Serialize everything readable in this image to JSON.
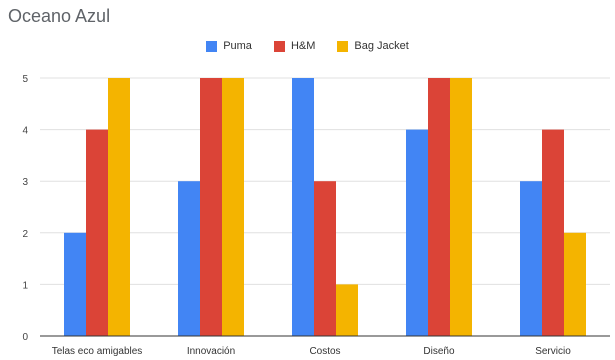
{
  "chart_data": {
    "type": "bar",
    "title": "Oceano Azul",
    "categories": [
      "Telas eco amigables",
      "Innovación",
      "Costos",
      "Diseño",
      "Servicio"
    ],
    "series": [
      {
        "name": "Puma",
        "color": "#4285f4",
        "values": [
          2,
          3,
          5,
          4,
          3
        ]
      },
      {
        "name": "H&M",
        "color": "#db4437",
        "values": [
          4,
          5,
          3,
          5,
          4
        ]
      },
      {
        "name": "Bag Jacket",
        "color": "#f4b400",
        "values": [
          5,
          5,
          1,
          5,
          2
        ]
      }
    ],
    "yticks": [
      "0",
      "1",
      "2",
      "3",
      "4",
      "5"
    ],
    "ylim": [
      0,
      5
    ],
    "grid": true,
    "legend_position": "top"
  }
}
